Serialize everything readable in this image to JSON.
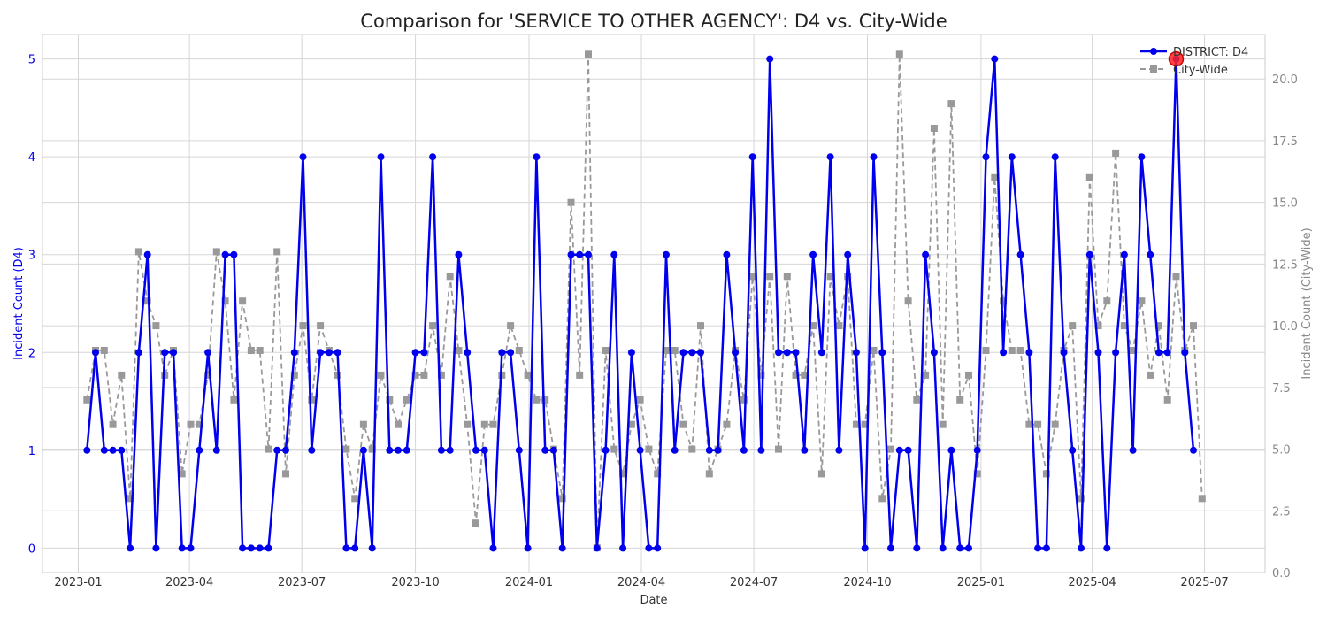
{
  "chart_data": {
    "type": "line",
    "title": "Comparison for 'SERVICE TO OTHER AGENCY': D4 vs. City-Wide",
    "xlabel": "Date",
    "ylabel_left": "Incident Count (D4)",
    "ylabel_right": "Incident Count (City-Wide)",
    "ylim_left": [
      -0.25,
      5.25
    ],
    "ylim_right": [
      0.0,
      21.8
    ],
    "xlim": [
      "2022-12-03",
      "2025-08-19"
    ],
    "x_ticks": [
      "2023-01",
      "2023-04",
      "2023-07",
      "2023-10",
      "2024-01",
      "2024-04",
      "2024-07",
      "2024-10",
      "2025-01",
      "2025-04",
      "2025-07"
    ],
    "y_ticks_left": [
      "0",
      "1",
      "2",
      "3",
      "4",
      "5"
    ],
    "y_ticks_right": [
      "0.0",
      "2.5",
      "5.0",
      "7.5",
      "10.0",
      "12.5",
      "15.0",
      "17.5",
      "20.0"
    ],
    "grid": true,
    "legend_position": "top-right",
    "dates": [
      "2023-01-08",
      "2023-01-15",
      "2023-01-22",
      "2023-01-29",
      "2023-02-05",
      "2023-02-12",
      "2023-02-19",
      "2023-02-26",
      "2023-03-05",
      "2023-03-12",
      "2023-03-19",
      "2023-03-26",
      "2023-04-02",
      "2023-04-09",
      "2023-04-16",
      "2023-04-23",
      "2023-04-30",
      "2023-05-07",
      "2023-05-14",
      "2023-05-21",
      "2023-05-28",
      "2023-06-04",
      "2023-06-11",
      "2023-06-18",
      "2023-06-25",
      "2023-07-02",
      "2023-07-09",
      "2023-07-16",
      "2023-07-23",
      "2023-07-30",
      "2023-08-06",
      "2023-08-13",
      "2023-08-20",
      "2023-08-27",
      "2023-09-03",
      "2023-09-10",
      "2023-09-17",
      "2023-09-24",
      "2023-10-01",
      "2023-10-08",
      "2023-10-15",
      "2023-10-22",
      "2023-10-29",
      "2023-11-05",
      "2023-11-12",
      "2023-11-19",
      "2023-11-26",
      "2023-12-03",
      "2023-12-10",
      "2023-12-17",
      "2023-12-24",
      "2023-12-31",
      "2024-01-07",
      "2024-01-14",
      "2024-01-21",
      "2024-01-28",
      "2024-02-04",
      "2024-02-11",
      "2024-02-18",
      "2024-02-25",
      "2024-03-03",
      "2024-03-10",
      "2024-03-17",
      "2024-03-24",
      "2024-03-31",
      "2024-04-07",
      "2024-04-14",
      "2024-04-21",
      "2024-04-28",
      "2024-05-05",
      "2024-05-12",
      "2024-05-19",
      "2024-05-26",
      "2024-06-02",
      "2024-06-09",
      "2024-06-16",
      "2024-06-23",
      "2024-06-30",
      "2024-07-07",
      "2024-07-14",
      "2024-07-21",
      "2024-07-28",
      "2024-08-04",
      "2024-08-11",
      "2024-08-18",
      "2024-08-25",
      "2024-09-01",
      "2024-09-08",
      "2024-09-15",
      "2024-09-22",
      "2024-09-29",
      "2024-10-06",
      "2024-10-13",
      "2024-10-20",
      "2024-10-27",
      "2024-11-03",
      "2024-11-10",
      "2024-11-17",
      "2024-11-24",
      "2024-12-01",
      "2024-12-08",
      "2024-12-15",
      "2024-12-22",
      "2024-12-29",
      "2025-01-05",
      "2025-01-12",
      "2025-01-19",
      "2025-01-26",
      "2025-02-02",
      "2025-02-09",
      "2025-02-16",
      "2025-02-23",
      "2025-03-02",
      "2025-03-09",
      "2025-03-16",
      "2025-03-23",
      "2025-03-30",
      "2025-04-06",
      "2025-04-13",
      "2025-04-20",
      "2025-04-27",
      "2025-05-04",
      "2025-05-11",
      "2025-05-18",
      "2025-05-25",
      "2025-06-01",
      "2025-06-08",
      "2025-06-15",
      "2025-06-22",
      "2025-06-29"
    ],
    "series": [
      {
        "name": "DISTRICT: D4",
        "axis": "left",
        "color": "#0000ee",
        "style": "solid",
        "marker": "circle",
        "values": [
          1,
          2,
          1,
          1,
          1,
          0,
          2,
          3,
          0,
          2,
          2,
          0,
          0,
          1,
          2,
          1,
          3,
          3,
          0,
          0,
          0,
          0,
          1,
          1,
          2,
          4,
          1,
          2,
          2,
          2,
          0,
          0,
          1,
          0,
          4,
          1,
          1,
          1,
          2,
          2,
          4,
          1,
          1,
          3,
          2,
          1,
          1,
          0,
          2,
          2,
          1,
          0,
          4,
          1,
          1,
          0,
          3,
          3,
          3,
          0,
          1,
          3,
          0,
          2,
          1,
          0,
          0,
          3,
          1,
          2,
          2,
          2,
          1,
          1,
          3,
          2,
          1,
          4,
          1,
          5,
          2,
          2,
          2,
          1,
          3,
          2,
          4,
          1,
          3,
          2,
          0,
          4,
          2,
          0,
          1,
          1,
          0,
          3,
          2,
          0,
          1,
          0,
          0,
          1,
          4,
          5,
          2,
          4,
          3,
          2,
          0,
          0,
          4,
          2,
          1,
          0,
          3,
          2,
          0,
          2,
          3,
          1,
          4,
          3,
          2,
          2,
          5,
          2,
          1,
          null
        ]
      },
      {
        "name": "City-Wide",
        "axis": "right",
        "color": "#999999",
        "style": "dashed",
        "marker": "square",
        "values": [
          7,
          9,
          9,
          6,
          8,
          3,
          13,
          11,
          10,
          8,
          9,
          4,
          6,
          6,
          8,
          13,
          11,
          7,
          11,
          9,
          9,
          5,
          13,
          4,
          8,
          10,
          7,
          10,
          9,
          8,
          5,
          3,
          6,
          5,
          8,
          7,
          6,
          7,
          8,
          8,
          10,
          8,
          12,
          9,
          6,
          2,
          6,
          6,
          8,
          10,
          9,
          8,
          7,
          7,
          5,
          3,
          15,
          8,
          21,
          1,
          9,
          5,
          4,
          6,
          7,
          5,
          4,
          9,
          9,
          6,
          5,
          10,
          4,
          5,
          6,
          9,
          7,
          12,
          8,
          12,
          5,
          12,
          8,
          8,
          10,
          4,
          12,
          10,
          12,
          6,
          6,
          9,
          3,
          5,
          21,
          11,
          7,
          8,
          18,
          6,
          19,
          7,
          8,
          4,
          9,
          16,
          11,
          9,
          9,
          6,
          6,
          4,
          6,
          9,
          10,
          3,
          16,
          10,
          11,
          17,
          10,
          9,
          11,
          8,
          10,
          7,
          12,
          9,
          10,
          3
        ]
      }
    ],
    "highlight": {
      "date": "2025-06-08",
      "value": 5
    }
  }
}
